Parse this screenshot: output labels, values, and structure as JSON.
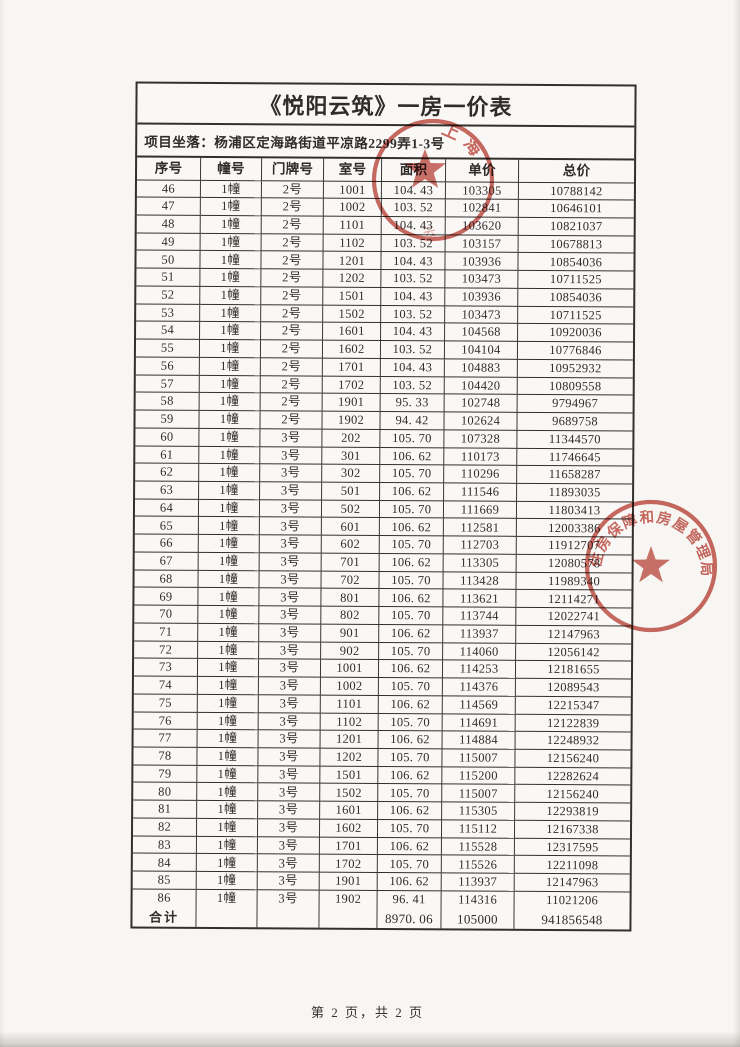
{
  "document": {
    "title": "《悦阳云筑》一房一价表",
    "location_label": "项目坐落：",
    "location": "杨浦区定海路街道平凉路2299弄1-3号",
    "page_footer": "第 2 页，共 2 页"
  },
  "table": {
    "columns": [
      "序号",
      "幢号",
      "门牌号",
      "室号",
      "面积",
      "单价",
      "总价"
    ],
    "rows": [
      [
        "46",
        "1幢",
        "2号",
        "1001",
        "104. 43",
        "103305",
        "10788142"
      ],
      [
        "47",
        "1幢",
        "2号",
        "1002",
        "103. 52",
        "102841",
        "10646101"
      ],
      [
        "48",
        "1幢",
        "2号",
        "1101",
        "104. 43",
        "103620",
        "10821037"
      ],
      [
        "49",
        "1幢",
        "2号",
        "1102",
        "103. 52",
        "103157",
        "10678813"
      ],
      [
        "50",
        "1幢",
        "2号",
        "1201",
        "104. 43",
        "103936",
        "10854036"
      ],
      [
        "51",
        "1幢",
        "2号",
        "1202",
        "103. 52",
        "103473",
        "10711525"
      ],
      [
        "52",
        "1幢",
        "2号",
        "1501",
        "104. 43",
        "103936",
        "10854036"
      ],
      [
        "53",
        "1幢",
        "2号",
        "1502",
        "103. 52",
        "103473",
        "10711525"
      ],
      [
        "54",
        "1幢",
        "2号",
        "1601",
        "104. 43",
        "104568",
        "10920036"
      ],
      [
        "55",
        "1幢",
        "2号",
        "1602",
        "103. 52",
        "104104",
        "10776846"
      ],
      [
        "56",
        "1幢",
        "2号",
        "1701",
        "104. 43",
        "104883",
        "10952932"
      ],
      [
        "57",
        "1幢",
        "2号",
        "1702",
        "103. 52",
        "104420",
        "10809558"
      ],
      [
        "58",
        "1幢",
        "2号",
        "1901",
        "95. 33",
        "102748",
        "9794967"
      ],
      [
        "59",
        "1幢",
        "2号",
        "1902",
        "94. 42",
        "102624",
        "9689758"
      ],
      [
        "60",
        "1幢",
        "3号",
        "202",
        "105. 70",
        "107328",
        "11344570"
      ],
      [
        "61",
        "1幢",
        "3号",
        "301",
        "106. 62",
        "110173",
        "11746645"
      ],
      [
        "62",
        "1幢",
        "3号",
        "302",
        "105. 70",
        "110296",
        "11658287"
      ],
      [
        "63",
        "1幢",
        "3号",
        "501",
        "106. 62",
        "111546",
        "11893035"
      ],
      [
        "64",
        "1幢",
        "3号",
        "502",
        "105. 70",
        "111669",
        "11803413"
      ],
      [
        "65",
        "1幢",
        "3号",
        "601",
        "106. 62",
        "112581",
        "12003386"
      ],
      [
        "66",
        "1幢",
        "3号",
        "602",
        "105. 70",
        "112703",
        "11912707"
      ],
      [
        "67",
        "1幢",
        "3号",
        "701",
        "106. 62",
        "113305",
        "12080578"
      ],
      [
        "68",
        "1幢",
        "3号",
        "702",
        "105. 70",
        "113428",
        "11989340"
      ],
      [
        "69",
        "1幢",
        "3号",
        "801",
        "106. 62",
        "113621",
        "12114271"
      ],
      [
        "70",
        "1幢",
        "3号",
        "802",
        "105. 70",
        "113744",
        "12022741"
      ],
      [
        "71",
        "1幢",
        "3号",
        "901",
        "106. 62",
        "113937",
        "12147963"
      ],
      [
        "72",
        "1幢",
        "3号",
        "902",
        "105. 70",
        "114060",
        "12056142"
      ],
      [
        "73",
        "1幢",
        "3号",
        "1001",
        "106. 62",
        "114253",
        "12181655"
      ],
      [
        "74",
        "1幢",
        "3号",
        "1002",
        "105. 70",
        "114376",
        "12089543"
      ],
      [
        "75",
        "1幢",
        "3号",
        "1101",
        "106. 62",
        "114569",
        "12215347"
      ],
      [
        "76",
        "1幢",
        "3号",
        "1102",
        "105. 70",
        "114691",
        "12122839"
      ],
      [
        "77",
        "1幢",
        "3号",
        "1201",
        "106. 62",
        "114884",
        "12248932"
      ],
      [
        "78",
        "1幢",
        "3号",
        "1202",
        "105. 70",
        "115007",
        "12156240"
      ],
      [
        "79",
        "1幢",
        "3号",
        "1501",
        "106. 62",
        "115200",
        "12282624"
      ],
      [
        "80",
        "1幢",
        "3号",
        "1502",
        "105. 70",
        "115007",
        "12156240"
      ],
      [
        "81",
        "1幢",
        "3号",
        "1601",
        "106. 62",
        "115305",
        "12293819"
      ],
      [
        "82",
        "1幢",
        "3号",
        "1602",
        "105. 70",
        "115112",
        "12167338"
      ],
      [
        "83",
        "1幢",
        "3号",
        "1701",
        "106. 62",
        "115528",
        "12317595"
      ],
      [
        "84",
        "1幢",
        "3号",
        "1702",
        "105. 70",
        "115526",
        "12211098"
      ],
      [
        "85",
        "1幢",
        "3号",
        "1901",
        "106. 62",
        "113937",
        "12147963"
      ],
      [
        "86",
        "1幢",
        "3号",
        "1902",
        "96. 41",
        "114316",
        "11021206"
      ]
    ],
    "total_row": [
      "合计",
      "",
      "",
      "",
      "8970. 06",
      "105000",
      "941856548"
    ]
  },
  "stamps": {
    "color": "#bf4a40",
    "stamp1": {
      "arc_text": "上海",
      "faint_text": "云"
    },
    "stamp2": {
      "arc_text": "住房保障和房屋管理局"
    }
  }
}
